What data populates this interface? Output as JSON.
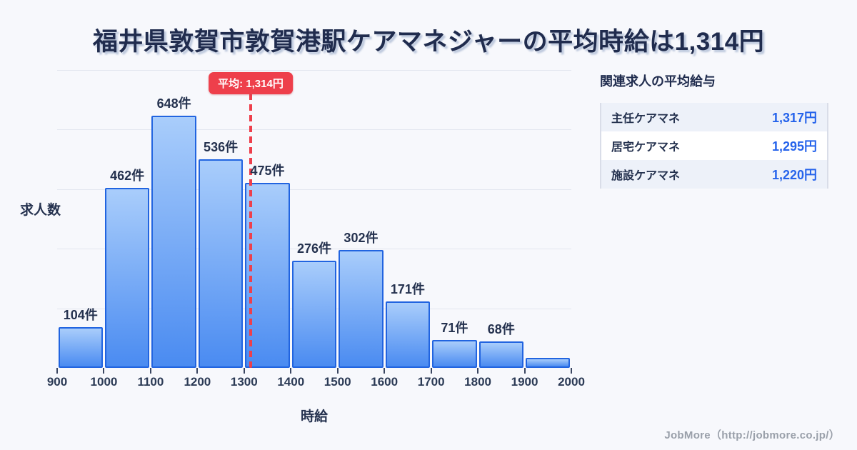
{
  "title": "福井県敦賀市敦賀港駅ケアマネジャーの平均時給は1,314円",
  "colors": {
    "background": "#f7f8fc",
    "title_navy": "#202c4e",
    "bar_gradient_top": "#a9cdfb",
    "bar_gradient_bottom": "#4a8bf1",
    "bar_border": "#2164e0",
    "gridline": "#e3e6ef",
    "average_red": "#ee3f4b",
    "panel_value_blue": "#2563eb",
    "panel_row_alt_bg": "#edf1f9",
    "footer_gray": "#9aa0aa"
  },
  "chart_data": {
    "type": "bar",
    "title": "",
    "xlabel": "時給",
    "ylabel": "求人数",
    "x_ticks": [
      "900",
      "1000",
      "1100",
      "1200",
      "1300",
      "1400",
      "1500",
      "1600",
      "1700",
      "1800",
      "1900",
      "2000"
    ],
    "categories": [
      "900-1000",
      "1000-1100",
      "1100-1200",
      "1200-1300",
      "1300-1400",
      "1400-1500",
      "1500-1600",
      "1600-1700",
      "1700-1800",
      "1800-1900",
      "1900-2000"
    ],
    "values": [
      104,
      462,
      648,
      536,
      475,
      276,
      302,
      171,
      71,
      68,
      25
    ],
    "labels": [
      "104件",
      "462件",
      "648件",
      "536件",
      "475件",
      "276件",
      "302件",
      "171件",
      "71件",
      "68件",
      ""
    ],
    "unit": "件",
    "ylim": [
      0,
      765
    ],
    "grid": true,
    "gridline_count": 5,
    "average_line": {
      "value": 1314,
      "label": "平均: 1,314円"
    }
  },
  "side_panel": {
    "title": "関連求人の平均給与",
    "rows": [
      {
        "label": "主任ケアマネ",
        "value": "1,317円"
      },
      {
        "label": "居宅ケアマネ",
        "value": "1,295円"
      },
      {
        "label": "施設ケアマネ",
        "value": "1,220円"
      }
    ]
  },
  "footer": {
    "credit": "JobMore（http://jobmore.co.jp/）"
  }
}
